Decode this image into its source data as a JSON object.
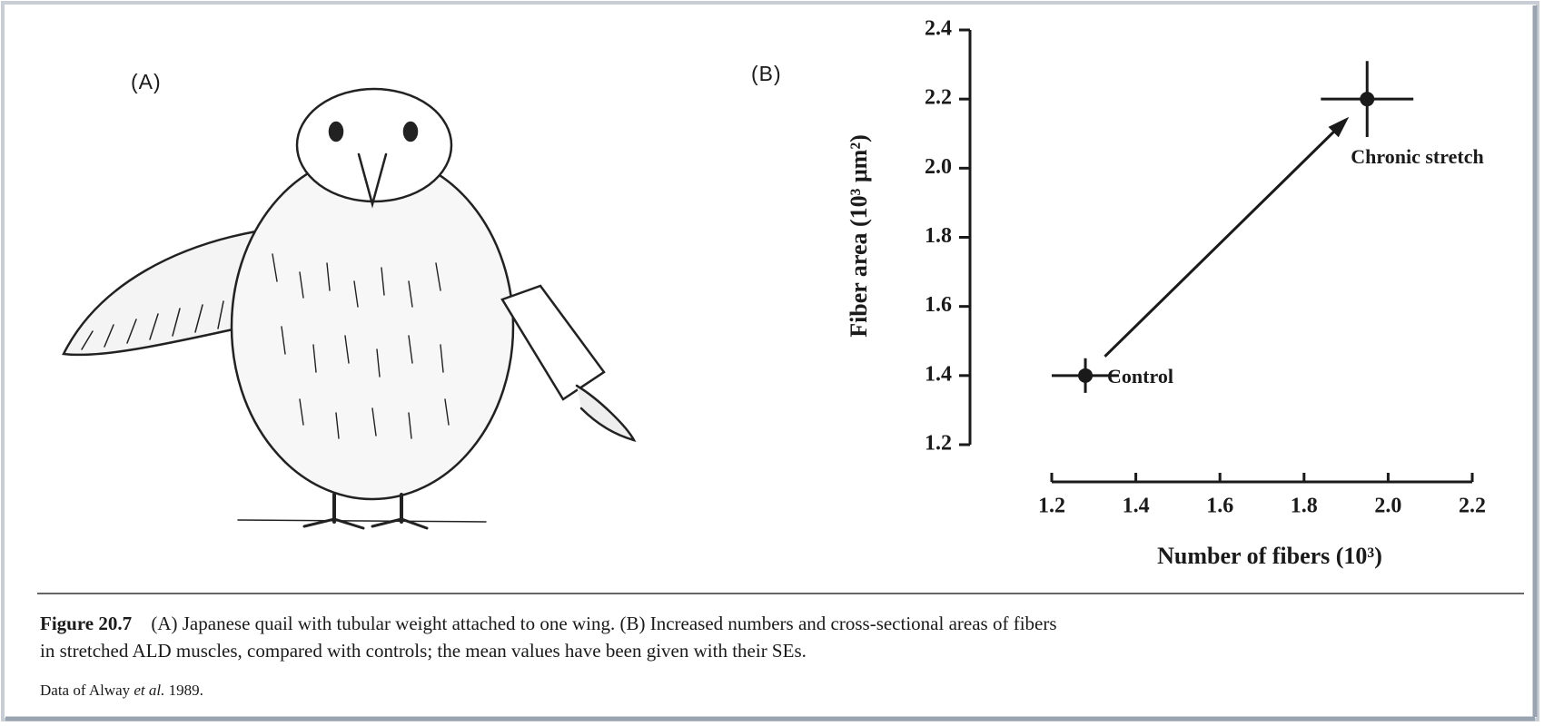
{
  "panel_a_label": "(A)",
  "caption": {
    "figure_label": "Figure 20.7",
    "lines": [
      "(A) Japanese quail with tubular weight attached to one wing. (B) Increased numbers and cross-sectional areas of fibers",
      "in stretched ALD muscles, compared with controls; the mean values have been given with their SEs."
    ],
    "source": [
      "Data of Alway ",
      "et al.",
      " 1989."
    ]
  },
  "chart_data": {
    "type": "scatter",
    "panel_label": "(B)",
    "x_label": "Number of fibers (10³)",
    "y_label": "Fiber area (10³ μm²)",
    "x": [
      1.28,
      1.95
    ],
    "series": [
      {
        "color": "#1a1a1a",
        "values": [
          1.4,
          2.2
        ],
        "xerr": [
          0.08,
          0.11
        ],
        "yerr": [
          0.05,
          0.11
        ],
        "labels": [
          "Control",
          "Chronic stretch"
        ]
      }
    ],
    "arrow": true,
    "xlim": [
      1.2,
      2.2
    ],
    "xticks": [
      1.2,
      1.4,
      1.6,
      1.8,
      {
        "value": 2,
        "label": "2.0"
      },
      2.2
    ],
    "ylim": [
      1.2,
      2.4
    ],
    "yticks": [
      1.2,
      1.4,
      1.6,
      1.8,
      {
        "value": 2,
        "label": "2.0"
      },
      2.2,
      2.4
    ]
  }
}
